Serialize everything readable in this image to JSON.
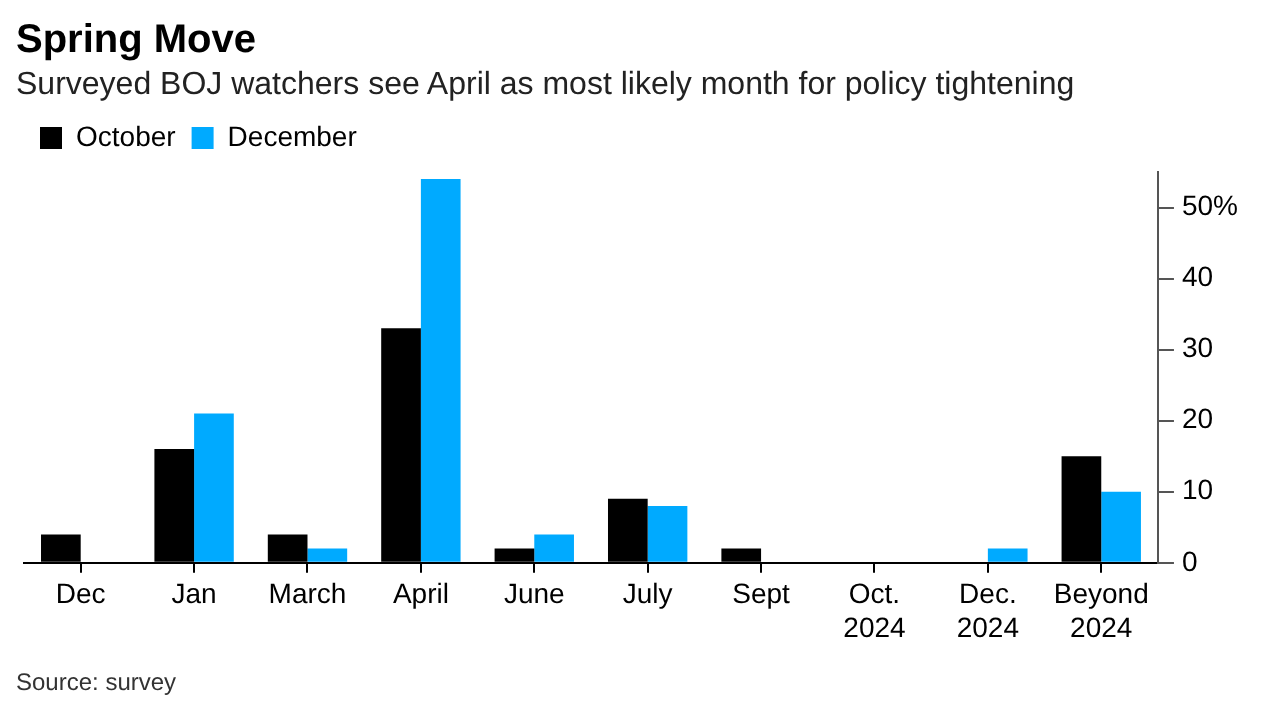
{
  "chart_data": {
    "type": "bar",
    "title": "Spring Move",
    "subtitle": "Surveyed BOJ watchers see April as most likely month for policy tightening",
    "categories": [
      "Dec",
      "Jan",
      "March",
      "April",
      "June",
      "July",
      "Sept",
      "Oct. 2024",
      "Dec. 2024",
      "Beyond 2024"
    ],
    "series": [
      {
        "name": "October",
        "color": "#000000",
        "values": [
          4,
          16,
          4,
          33,
          2,
          9,
          2,
          0,
          0,
          15
        ]
      },
      {
        "name": "December",
        "color": "#00aaff",
        "values": [
          0,
          21,
          2,
          54,
          4,
          8,
          0,
          0,
          2,
          10
        ]
      }
    ],
    "ylim": [
      0,
      55
    ],
    "yticks": [
      0,
      10,
      20,
      30,
      40,
      {
        "value": 50,
        "label": "50%"
      }
    ],
    "legend": "top left",
    "annotations": [
      "Source: survey"
    ]
  }
}
